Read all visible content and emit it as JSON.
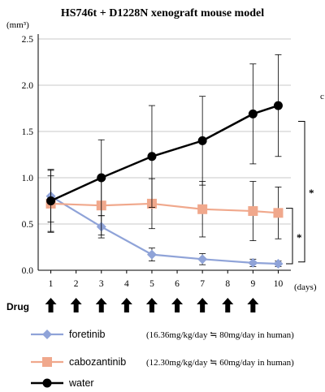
{
  "chart_data": {
    "type": "line",
    "title": "HS746t + D1228N xenograft  mouse model",
    "y_unit": "(mm³)",
    "x_unit": "(days)",
    "x": [
      1,
      3,
      5,
      7,
      9,
      10
    ],
    "x_ticks": [
      "1",
      "2",
      "3",
      "4",
      "5",
      "6",
      "7",
      "8",
      "9",
      "10"
    ],
    "y_ticks": [
      "0.0",
      "0.5",
      "1.0",
      "1.5",
      "2.0",
      "2.5"
    ],
    "ylim": [
      0,
      2.5
    ],
    "grid": true,
    "series": [
      {
        "name": "foretinib",
        "dose": "(16.36mg/kg/day ≒ 80mg/day in human)",
        "color": "#8fa3d8",
        "marker": "diamond",
        "values": [
          0.8,
          0.47,
          0.17,
          0.12,
          0.08,
          0.07
        ],
        "errors": [
          0.28,
          0.12,
          0.07,
          0.06,
          0.04,
          0.03
        ]
      },
      {
        "name": "cabozantinib",
        "dose": "(12.30mg/kg/day ≒ 60mg/day in human)",
        "color": "#f0a88c",
        "marker": "square",
        "values": [
          0.72,
          0.7,
          0.72,
          0.66,
          0.64,
          0.62
        ],
        "errors": [
          0.3,
          0.32,
          0.27,
          0.3,
          0.32,
          0.28
        ]
      },
      {
        "name": "water",
        "dose": "",
        "color": "#000000",
        "marker": "circle",
        "values": [
          0.75,
          1.0,
          1.23,
          1.4,
          1.69,
          1.78
        ],
        "errors": [
          0.34,
          0.41,
          0.55,
          0.48,
          0.54,
          0.55
        ]
      }
    ],
    "significance": [
      "*",
      "*"
    ],
    "drug_label": "Drug",
    "drug_days": [
      1,
      2,
      3,
      4,
      5,
      6,
      7,
      8,
      9
    ],
    "edge_label": "c"
  }
}
